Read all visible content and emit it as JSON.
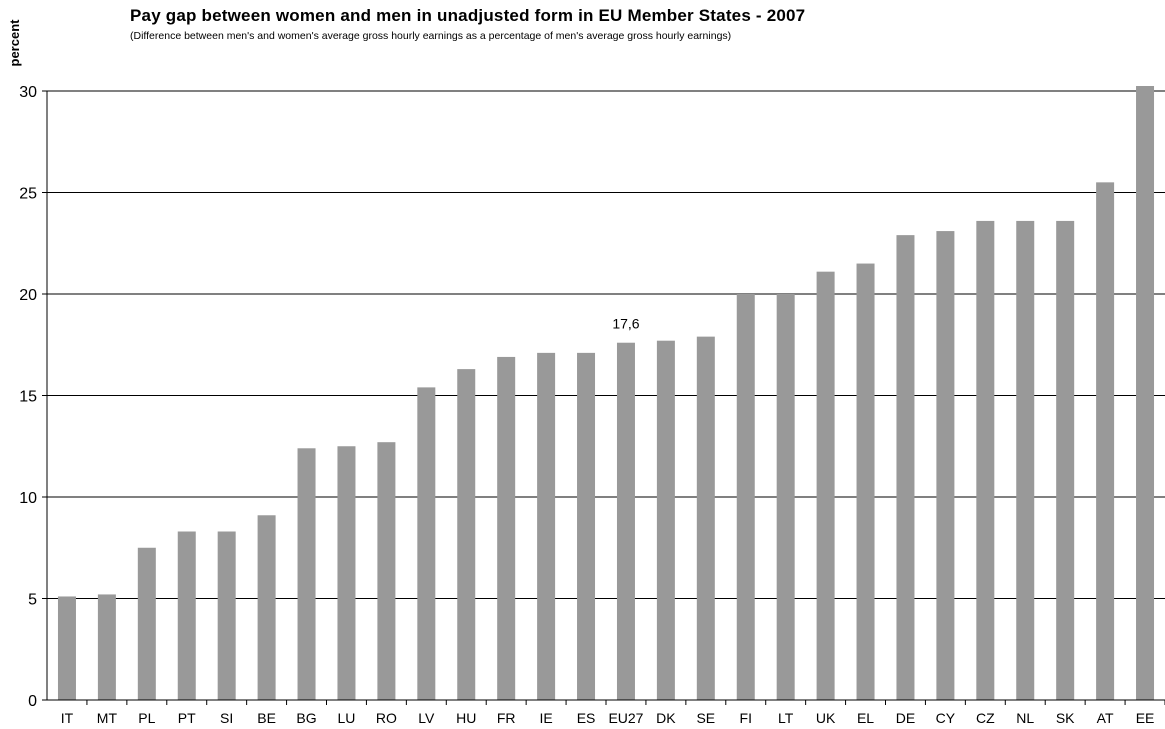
{
  "chart_data": {
    "type": "bar",
    "title": "Pay gap between women and men in unadjusted form in EU Member States - 2007",
    "subtitle": "(Difference between men's and women's average gross hourly earnings as a percentage of men's average gross hourly earnings)",
    "xlabel": "",
    "ylabel": "percent",
    "ylim": [
      0,
      30
    ],
    "yticks": [
      0,
      5,
      10,
      15,
      20,
      25,
      30
    ],
    "grid": true,
    "legend": "none",
    "bar_color": "#999999",
    "categories": [
      "IT",
      "MT",
      "PL",
      "PT",
      "SI",
      "BE",
      "BG",
      "LU",
      "RO",
      "LV",
      "HU",
      "FR",
      "IE",
      "ES",
      "EU27",
      "DK",
      "SE",
      "FI",
      "LT",
      "UK",
      "EL",
      "DE",
      "CY",
      "CZ",
      "NL",
      "SK",
      "AT",
      "EE"
    ],
    "values": [
      5.1,
      5.2,
      7.5,
      8.3,
      8.3,
      9.1,
      12.4,
      12.5,
      12.7,
      15.4,
      16.3,
      16.9,
      17.1,
      17.1,
      17.6,
      17.7,
      17.9,
      20.0,
      20.0,
      21.1,
      21.5,
      22.9,
      23.1,
      23.6,
      23.6,
      23.6,
      25.5,
      30.3
    ],
    "data_labels": [
      {
        "category": "EU27",
        "text": "17,6"
      }
    ]
  }
}
